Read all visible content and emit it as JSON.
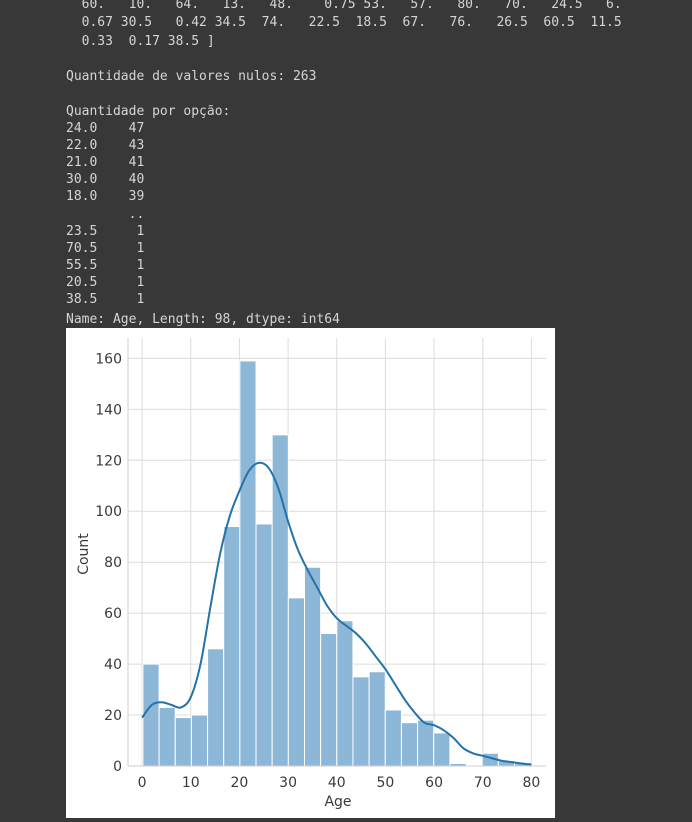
{
  "console": {
    "lines": [
      "  60.   10.   64.   13.   48.    0.75 53.   57.   80.   70.   24.5   6.",
      "  0.67 30.5   0.42 34.5  74.   22.5  18.5  67.   76.   26.5  60.5  11.5",
      "  0.33  0.17 38.5 ]",
      "",
      "Quantidade de valores nulos: 263",
      "",
      "Quantidade por opção:",
      "24.0    47",
      "22.0    43",
      "21.0    41",
      "30.0    40",
      "18.0    39",
      "        ..",
      "23.5     1",
      "70.5     1",
      "55.5     1",
      "20.5     1",
      "38.5     1",
      "Name: Age, Length: 98, dtype: int64"
    ]
  },
  "chart_data": {
    "type": "bar",
    "subtype": "histogram_with_kde",
    "xlabel": "Age",
    "ylabel": "Count",
    "xlim": [
      -2.9,
      83.0
    ],
    "ylim": [
      0,
      168
    ],
    "xticks": [
      0,
      10,
      20,
      30,
      40,
      50,
      60,
      70,
      80
    ],
    "yticks": [
      0,
      20,
      40,
      60,
      80,
      100,
      120,
      140,
      160
    ],
    "grid": true,
    "bar_color": "#8db7d7",
    "bar_edge": "#ffffff",
    "kde_color": "#2472a8",
    "bins": [
      {
        "start": 0.17,
        "end": 3.49,
        "count": 40
      },
      {
        "start": 3.49,
        "end": 6.81,
        "count": 23
      },
      {
        "start": 6.81,
        "end": 10.13,
        "count": 19
      },
      {
        "start": 10.13,
        "end": 13.45,
        "count": 20
      },
      {
        "start": 13.45,
        "end": 16.77,
        "count": 46
      },
      {
        "start": 16.77,
        "end": 20.09,
        "count": 94
      },
      {
        "start": 20.09,
        "end": 23.41,
        "count": 159
      },
      {
        "start": 23.41,
        "end": 26.73,
        "count": 95
      },
      {
        "start": 26.73,
        "end": 30.05,
        "count": 130
      },
      {
        "start": 30.05,
        "end": 33.37,
        "count": 66
      },
      {
        "start": 33.37,
        "end": 36.69,
        "count": 78
      },
      {
        "start": 36.69,
        "end": 40.01,
        "count": 52
      },
      {
        "start": 40.01,
        "end": 43.33,
        "count": 57
      },
      {
        "start": 43.33,
        "end": 46.65,
        "count": 35
      },
      {
        "start": 46.65,
        "end": 49.97,
        "count": 37
      },
      {
        "start": 49.97,
        "end": 53.29,
        "count": 22
      },
      {
        "start": 53.29,
        "end": 56.61,
        "count": 17
      },
      {
        "start": 56.61,
        "end": 59.93,
        "count": 18
      },
      {
        "start": 59.93,
        "end": 63.25,
        "count": 13
      },
      {
        "start": 63.25,
        "end": 66.57,
        "count": 1
      },
      {
        "start": 66.57,
        "end": 69.89,
        "count": 0
      },
      {
        "start": 69.89,
        "end": 73.21,
        "count": 5
      },
      {
        "start": 73.21,
        "end": 76.53,
        "count": 2
      },
      {
        "start": 76.53,
        "end": 79.85,
        "count": 1
      }
    ],
    "kde": {
      "x": [
        0,
        2,
        4,
        6,
        8,
        10,
        12,
        14,
        16,
        18,
        20,
        22,
        24,
        26,
        28,
        30,
        32,
        34,
        36,
        38,
        40,
        42,
        44,
        46,
        48,
        50,
        52,
        54,
        56,
        58,
        60,
        62,
        64,
        66,
        68,
        70,
        72,
        74,
        76,
        78,
        80
      ],
      "y": [
        19,
        24,
        25,
        24,
        23,
        27,
        40,
        62,
        83,
        98,
        108,
        116,
        119,
        117,
        109,
        96,
        85,
        77,
        70,
        63,
        58,
        55,
        52,
        48,
        43,
        38,
        32,
        26,
        21,
        17,
        16,
        14,
        11,
        7,
        5,
        4,
        3,
        2,
        1.5,
        1,
        0.6
      ]
    }
  }
}
